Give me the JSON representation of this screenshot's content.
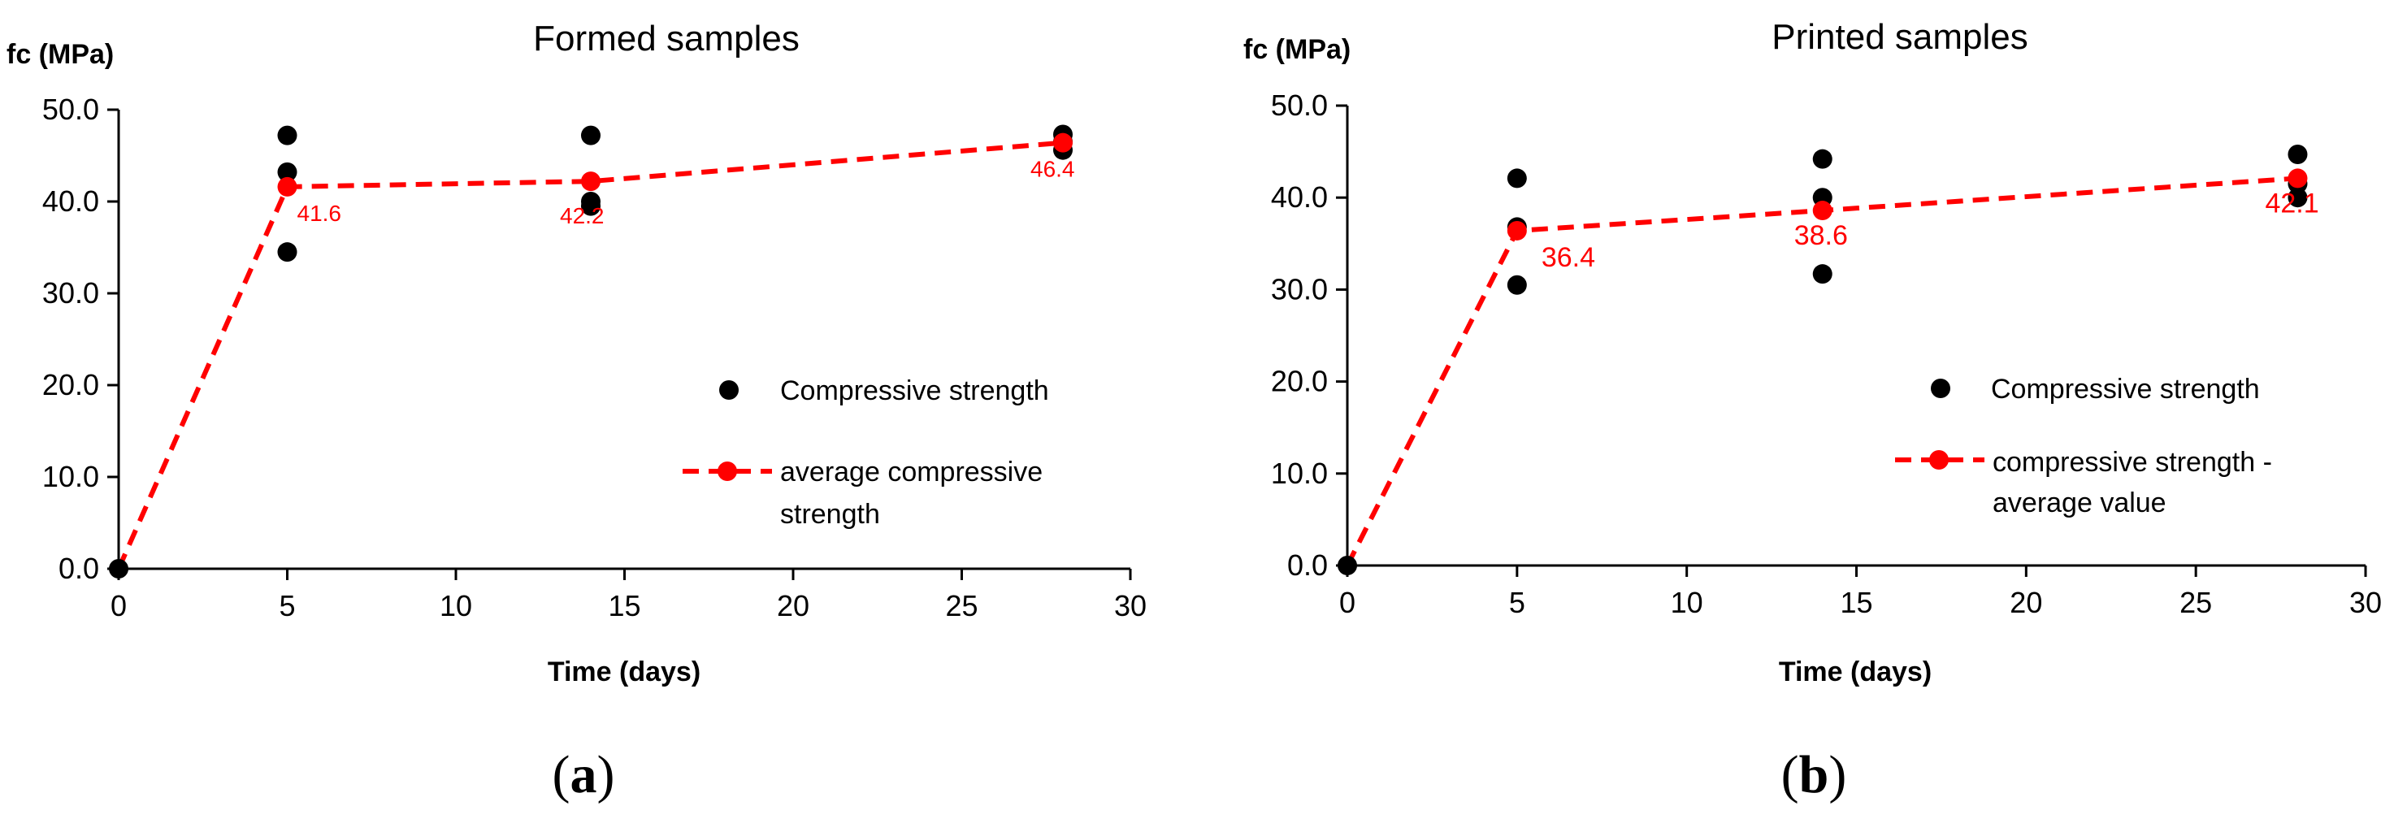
{
  "colors": {
    "points": "#000000",
    "average": "#ff0000",
    "axis": "#000000"
  },
  "chart_data": [
    {
      "type": "scatter",
      "title": "Formed samples",
      "xlabel": "Time (days)",
      "ylabel": "fc (MPa)",
      "xlim": [
        0,
        30
      ],
      "ylim": [
        0,
        50
      ],
      "xticks": [
        0,
        5,
        10,
        15,
        20,
        25,
        30
      ],
      "xtick_labels": [
        "0",
        "5",
        "10",
        "15",
        "20",
        "25",
        "30"
      ],
      "yticks": [
        0,
        10,
        20,
        30,
        40,
        50
      ],
      "ytick_labels": [
        "0.0",
        "10.0",
        "20.0",
        "30.0",
        "40.0",
        "50.0"
      ],
      "grid": false,
      "series": [
        {
          "name": "Compressive strength",
          "style": "markers",
          "x": [
            0,
            5,
            5,
            5,
            14,
            14,
            14,
            28,
            28,
            28
          ],
          "y": [
            0.0,
            47.2,
            43.2,
            34.5,
            47.2,
            40.0,
            39.5,
            47.3,
            46.5,
            45.6
          ]
        },
        {
          "name": "average compressive strength",
          "style": "dashed-line-markers",
          "x": [
            0,
            5,
            14,
            28
          ],
          "y": [
            0.0,
            41.6,
            42.2,
            46.4
          ],
          "labels": [
            "",
            "41.6",
            "42.2",
            "46.4"
          ]
        }
      ],
      "legend_placement": "center-right",
      "caption_open": "(",
      "caption_letter": "a",
      "caption_close": ")"
    },
    {
      "type": "scatter",
      "title": "Printed samples",
      "xlabel": "Time (days)",
      "ylabel": "fc (MPa)",
      "xlim": [
        0,
        30
      ],
      "ylim": [
        0,
        50
      ],
      "xticks": [
        0,
        5,
        10,
        15,
        20,
        25,
        30
      ],
      "xtick_labels": [
        "0",
        "5",
        "10",
        "15",
        "20",
        "25",
        "30"
      ],
      "yticks": [
        0,
        10,
        20,
        30,
        40,
        50
      ],
      "ytick_labels": [
        "0.0",
        "10.0",
        "20.0",
        "30.0",
        "40.0",
        "50.0"
      ],
      "grid": false,
      "series": [
        {
          "name": "Compressive strength",
          "style": "markers",
          "x": [
            0,
            5,
            5,
            5,
            14,
            14,
            14,
            28,
            28,
            28
          ],
          "y": [
            0.0,
            42.1,
            36.8,
            30.5,
            44.2,
            40.0,
            31.7,
            44.7,
            41.5,
            40.0
          ]
        },
        {
          "name": "compressive strength - average value",
          "style": "dashed-line-markers",
          "x": [
            0,
            5,
            14,
            28
          ],
          "y": [
            0.0,
            36.4,
            38.6,
            42.1
          ],
          "labels": [
            "",
            "36.4",
            "38.6",
            "42.1"
          ]
        }
      ],
      "legend_placement": "center-right",
      "caption_open": "(",
      "caption_letter": "b",
      "caption_close": ")"
    }
  ]
}
